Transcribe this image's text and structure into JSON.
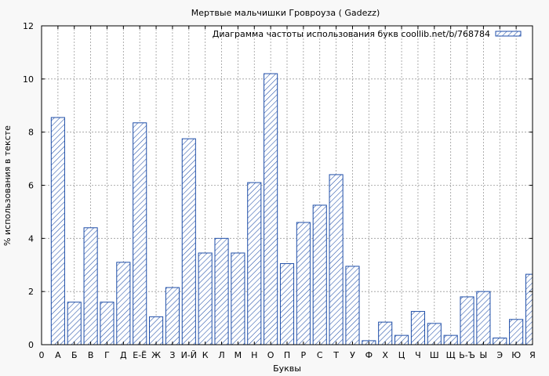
{
  "chart_data": {
    "type": "bar",
    "title": "Мертвые мальчишки Гровроуза ( Gadezz)",
    "xlabel": "Буквы",
    "ylabel": "% использования в тексте",
    "ylim": [
      0,
      12
    ],
    "yticks": [
      "0",
      "2",
      "4",
      "6",
      "8",
      "10",
      "12"
    ],
    "x_first_tick": "0",
    "grid": true,
    "legend_position": "top-right",
    "categories": [
      "А",
      "Б",
      "В",
      "Г",
      "Д",
      "Е-Ё",
      "Ж",
      "З",
      "И-Й",
      "К",
      "Л",
      "М",
      "Н",
      "О",
      "П",
      "Р",
      "С",
      "Т",
      "У",
      "Ф",
      "Х",
      "Ц",
      "Ч",
      "Ш",
      "Щ",
      "Ь-Ъ",
      "Ы",
      "Э",
      "Ю",
      "Я"
    ],
    "series": [
      {
        "name": "Диаграмма частоты использования букв coollib.net/b/768784",
        "color": "#1f4ea8",
        "values": [
          8.55,
          1.6,
          4.4,
          1.6,
          3.1,
          8.35,
          1.05,
          2.15,
          7.75,
          3.45,
          4.0,
          3.45,
          6.1,
          10.2,
          3.05,
          4.6,
          5.25,
          6.4,
          2.95,
          0.15,
          0.85,
          0.35,
          1.25,
          0.8,
          0.35,
          1.8,
          2.0,
          0.25,
          0.95,
          2.65
        ]
      }
    ]
  }
}
